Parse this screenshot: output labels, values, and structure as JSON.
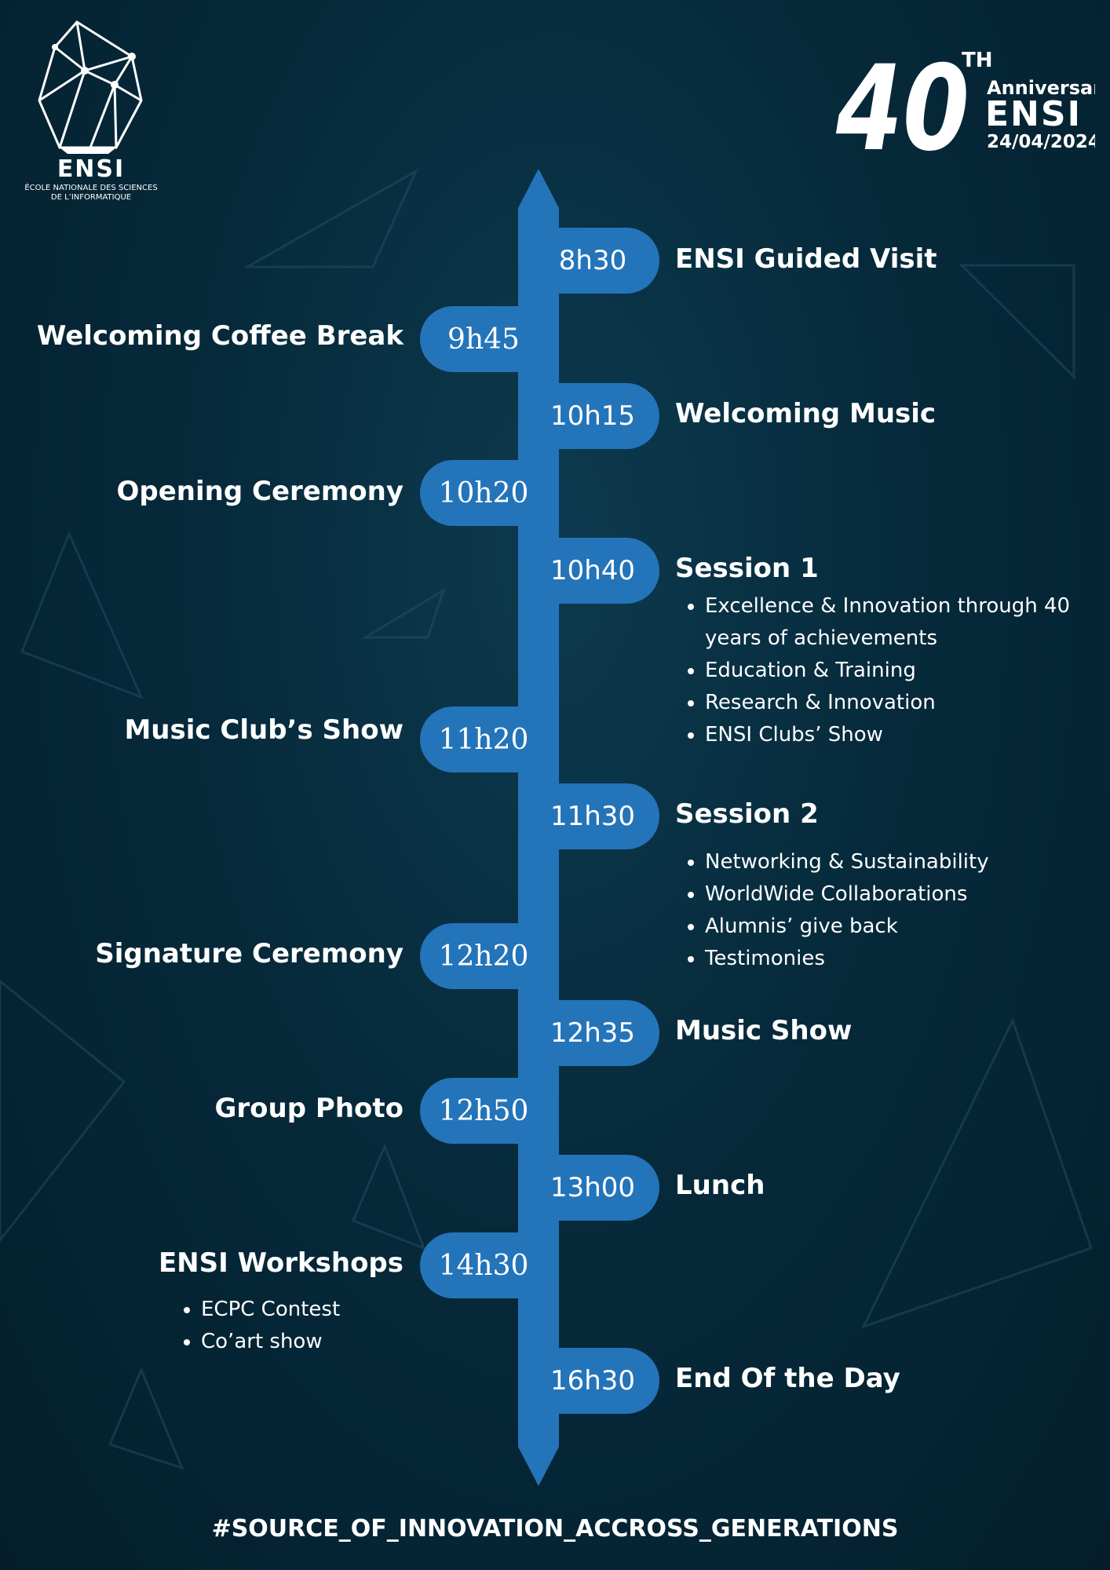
{
  "logo_left": {
    "wordmark": "ENSI",
    "caption_line1": "ÉCOLE NATIONALE DES SCIENCES",
    "caption_line2": "DE L’INFORMATIQUE"
  },
  "logo_right": {
    "number": "40",
    "suffix": "TH",
    "word": "Anniversary",
    "brand": "ENSI",
    "date": "24/04/2024"
  },
  "timeline": [
    {
      "time": "8h30",
      "side": "right",
      "title": "ENSI Guided Visit",
      "items": []
    },
    {
      "time": "9h45",
      "side": "left",
      "title": "Welcoming Coffee Break",
      "items": []
    },
    {
      "time": "10h15",
      "side": "right",
      "title": "Welcoming Music",
      "items": []
    },
    {
      "time": "10h20",
      "side": "left",
      "title": "Opening  Ceremony",
      "items": []
    },
    {
      "time": "10h40",
      "side": "right",
      "title": "Session 1",
      "items": [
        "Excellence & Innovation through 40 years of achievements",
        "Education & Training",
        "Research & Innovation",
        "ENSI Clubs’ Show"
      ]
    },
    {
      "time": "11h20",
      "side": "left",
      "title": "Music Club’s Show",
      "items": []
    },
    {
      "time": "11h30",
      "side": "right",
      "title": "Session 2",
      "items": [
        "Networking & Sustainability",
        "WorldWide Collaborations",
        "Alumnis’ give back",
        "Testimonies"
      ]
    },
    {
      "time": "12h20",
      "side": "left",
      "title": "Signature  Ceremony",
      "items": []
    },
    {
      "time": "12h35",
      "side": "right",
      "title": "Music Show",
      "items": []
    },
    {
      "time": "12h50",
      "side": "left",
      "title": "Group Photo",
      "items": []
    },
    {
      "time": "13h00",
      "side": "right",
      "title": "Lunch",
      "items": []
    },
    {
      "time": "14h30",
      "side": "left",
      "title": "ENSI Workshops",
      "items": [
        "ECPC Contest",
        "Co’art show"
      ]
    },
    {
      "time": "16h30",
      "side": "right",
      "title": "End Of the Day",
      "items": []
    }
  ],
  "footer": "#SOURCE_OF_INNOVATION_ACCROSS_GENERATIONS",
  "colors": {
    "background": "#062a3b",
    "accent": "#2474ba",
    "text": "#ffffff"
  }
}
